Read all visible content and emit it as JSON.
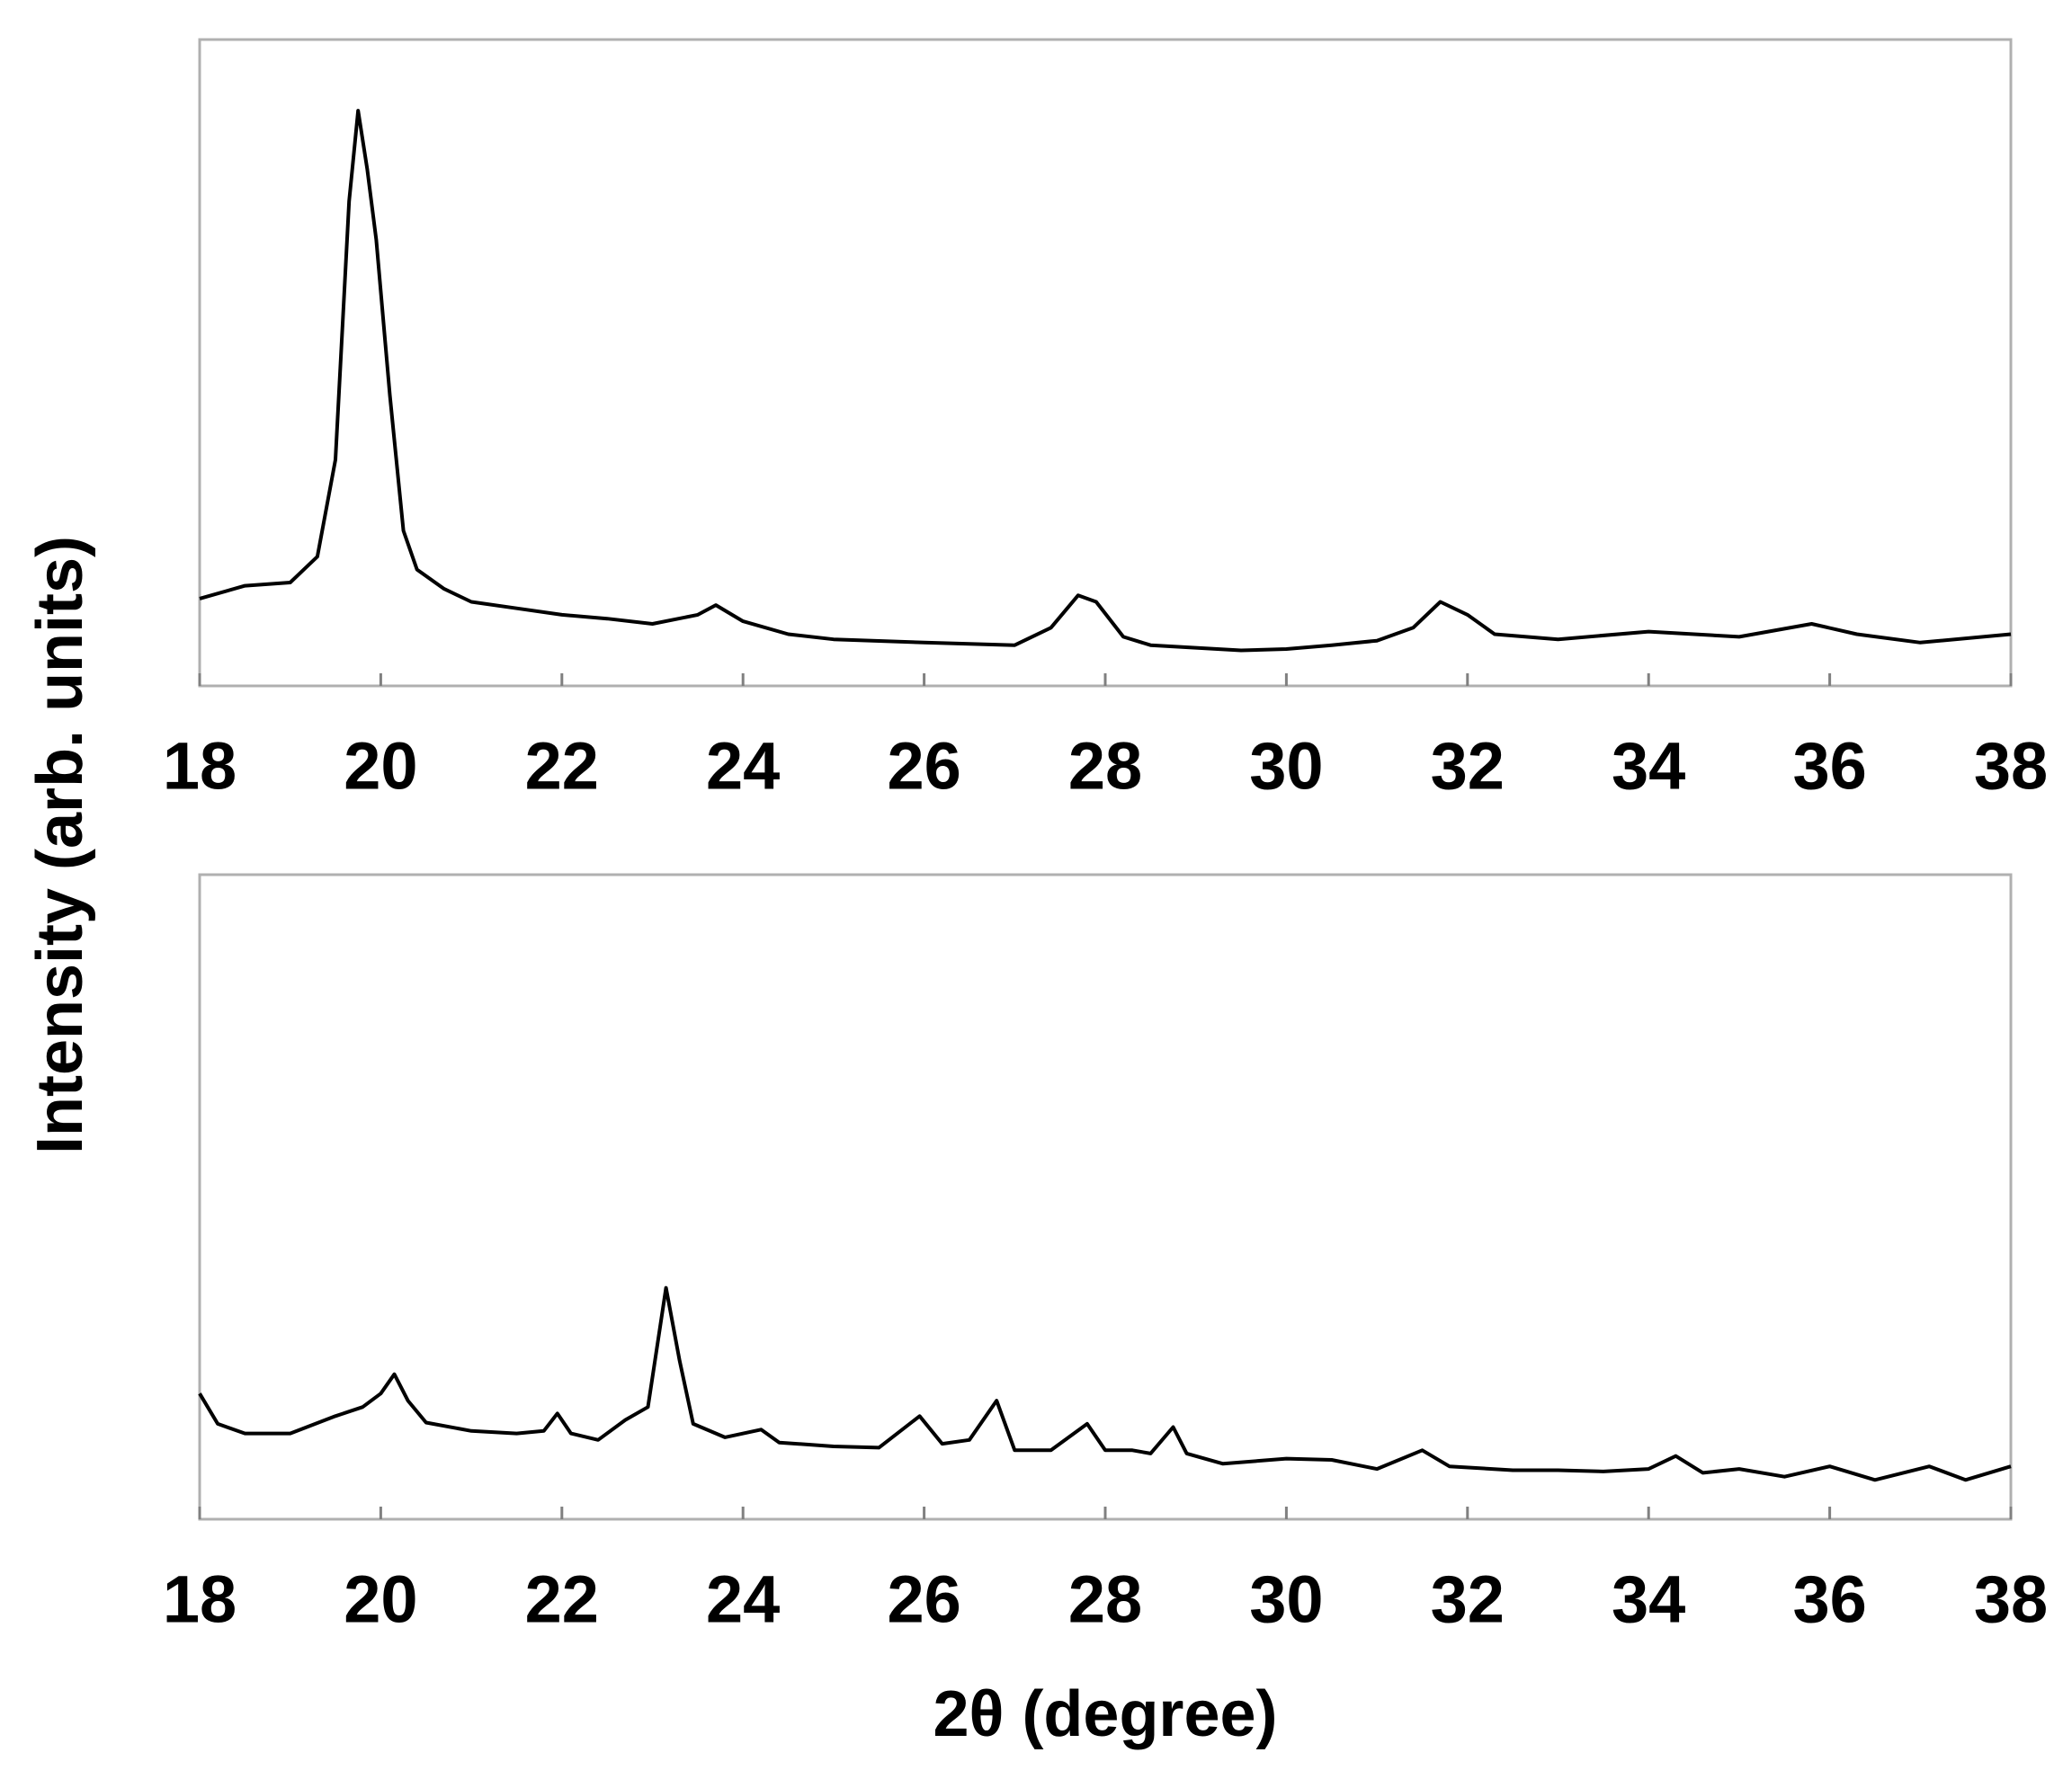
{
  "chart_data": [
    {
      "type": "line",
      "ylabel": "Intensity (arb. units)",
      "xlim": [
        18,
        38
      ],
      "xticks": [
        18,
        20,
        22,
        24,
        26,
        28,
        30,
        32,
        34,
        36,
        38
      ],
      "ylim": [
        0,
        100
      ],
      "series": [
        {
          "color": "#000000",
          "x": [
            18.0,
            18.5,
            19.0,
            19.3,
            19.5,
            19.65,
            19.75,
            19.85,
            19.95,
            20.1,
            20.25,
            20.4,
            20.7,
            21.0,
            21.5,
            22.0,
            22.5,
            23.0,
            23.5,
            23.7,
            24.0,
            24.5,
            25.0,
            26.0,
            27.0,
            27.4,
            27.7,
            27.9,
            28.2,
            28.5,
            29.0,
            29.5,
            30.0,
            30.5,
            31.0,
            31.4,
            31.7,
            32.0,
            32.3,
            33.0,
            34.0,
            35.0,
            35.8,
            36.3,
            37.0,
            38.0
          ],
          "values": [
            13.5,
            15.5,
            16,
            20,
            35,
            75,
            89,
            80,
            69,
            45,
            24,
            18,
            15,
            13,
            12,
            11,
            10.4,
            9.6,
            11,
            12.5,
            10,
            8,
            7.2,
            6.7,
            6.3,
            9,
            14,
            13,
            7.6,
            6.3,
            5.9,
            5.5,
            5.7,
            6.3,
            7,
            9,
            13,
            11,
            8,
            7.2,
            8.4,
            7.6,
            9.6,
            8,
            6.7,
            8
          ]
        }
      ]
    },
    {
      "type": "line",
      "xlabel": "2θ (degree)",
      "xlim": [
        18,
        38
      ],
      "xticks": [
        18,
        20,
        22,
        24,
        26,
        28,
        30,
        32,
        34,
        36,
        38
      ],
      "ylim": [
        0,
        100
      ],
      "series": [
        {
          "color": "#000000",
          "x": [
            18.0,
            18.2,
            18.5,
            19.0,
            19.5,
            19.8,
            20.0,
            20.15,
            20.3,
            20.5,
            21.0,
            21.5,
            21.8,
            21.95,
            22.1,
            22.4,
            22.7,
            22.95,
            23.15,
            23.3,
            23.45,
            23.8,
            24.2,
            24.4,
            25.0,
            25.5,
            25.95,
            26.2,
            26.5,
            26.8,
            27.0,
            27.4,
            27.8,
            28.0,
            28.3,
            28.5,
            28.75,
            28.9,
            29.3,
            30.0,
            30.5,
            31.0,
            31.5,
            31.8,
            32.5,
            33.0,
            33.5,
            34.0,
            34.3,
            34.6,
            35.0,
            35.5,
            36.0,
            36.5,
            37.1,
            37.5,
            38.0
          ],
          "values": [
            19.5,
            14.8,
            13.3,
            13.3,
            16,
            17.4,
            19.5,
            22.5,
            18.4,
            15,
            13.7,
            13.3,
            13.7,
            16.4,
            13.3,
            12.3,
            15.4,
            17.4,
            35.9,
            24.6,
            14.8,
            12.7,
            13.9,
            11.9,
            11.3,
            11.1,
            16,
            11.7,
            12.3,
            18.4,
            10.7,
            10.7,
            14.8,
            10.7,
            10.7,
            10.2,
            14.3,
            10.2,
            8.6,
            9.4,
            9.2,
            7.8,
            10.7,
            8.2,
            7.6,
            7.6,
            7.4,
            7.8,
            9.8,
            7.2,
            7.8,
            6.6,
            8.2,
            6.1,
            8.2,
            6.1,
            8.2
          ]
        }
      ]
    }
  ]
}
